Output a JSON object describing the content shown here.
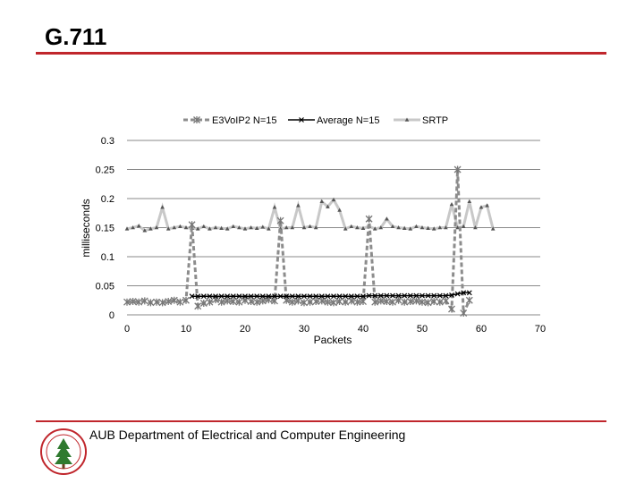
{
  "slide": {
    "title": "G.711",
    "footer": "AUB Department of Electrical and Computer Engineering"
  },
  "colors": {
    "accent_rule": "#c0262c",
    "series_e3voip": "#8c8c8c",
    "series_average": "#000000",
    "series_srtp": "#c8c8c8"
  },
  "chart_data": {
    "type": "line",
    "title": "",
    "xlabel": "Packets",
    "ylabel": "milliseconds",
    "xlim": [
      0,
      70
    ],
    "ylim": [
      0,
      0.3
    ],
    "x_ticks": [
      "0",
      "10",
      "20",
      "30",
      "40",
      "50",
      "60",
      "70"
    ],
    "y_ticks": [
      "0",
      "0.05",
      "0.1",
      "0.15",
      "0.2",
      "0.25",
      "0.3"
    ],
    "grid": true,
    "legend_position": "top",
    "series": [
      {
        "name": "E3VoIP2 N=15",
        "marker": "asterisk",
        "style": "dashed",
        "x": [
          0,
          1,
          2,
          3,
          4,
          5,
          6,
          7,
          8,
          9,
          10,
          11,
          12,
          13,
          14,
          15,
          16,
          17,
          18,
          19,
          20,
          21,
          22,
          23,
          24,
          25,
          26,
          27,
          28,
          29,
          30,
          31,
          32,
          33,
          34,
          35,
          36,
          37,
          38,
          39,
          40,
          41,
          42,
          43,
          44,
          45,
          46,
          47,
          48,
          49,
          50,
          51,
          52,
          53,
          54,
          55,
          56,
          57,
          58
        ],
        "y": [
          0.022,
          0.023,
          0.022,
          0.024,
          0.021,
          0.022,
          0.021,
          0.023,
          0.025,
          0.022,
          0.025,
          0.155,
          0.015,
          0.02,
          0.022,
          0.026,
          0.022,
          0.024,
          0.023,
          0.022,
          0.025,
          0.023,
          0.022,
          0.024,
          0.026,
          0.024,
          0.162,
          0.025,
          0.022,
          0.024,
          0.021,
          0.022,
          0.023,
          0.024,
          0.022,
          0.021,
          0.023,
          0.022,
          0.024,
          0.022,
          0.023,
          0.165,
          0.022,
          0.024,
          0.023,
          0.022,
          0.025,
          0.022,
          0.023,
          0.024,
          0.022,
          0.021,
          0.023,
          0.022,
          0.024,
          0.01,
          0.25,
          0.003,
          0.025
        ]
      },
      {
        "name": "Average N=15",
        "marker": "x",
        "style": "solid",
        "x": [
          11,
          12,
          13,
          14,
          15,
          16,
          17,
          18,
          19,
          20,
          21,
          22,
          23,
          24,
          25,
          26,
          27,
          28,
          29,
          30,
          31,
          32,
          33,
          34,
          35,
          36,
          37,
          38,
          39,
          40,
          41,
          42,
          43,
          44,
          45,
          46,
          47,
          48,
          49,
          50,
          51,
          52,
          53,
          54,
          55,
          56,
          57,
          58
        ],
        "y": [
          0.032,
          0.032,
          0.032,
          0.032,
          0.032,
          0.032,
          0.032,
          0.032,
          0.032,
          0.032,
          0.032,
          0.032,
          0.032,
          0.032,
          0.032,
          0.032,
          0.032,
          0.032,
          0.032,
          0.032,
          0.032,
          0.032,
          0.032,
          0.032,
          0.032,
          0.032,
          0.032,
          0.032,
          0.032,
          0.032,
          0.033,
          0.033,
          0.033,
          0.033,
          0.033,
          0.033,
          0.033,
          0.033,
          0.033,
          0.033,
          0.033,
          0.033,
          0.033,
          0.033,
          0.034,
          0.036,
          0.038,
          0.038
        ]
      },
      {
        "name": "SRTP",
        "marker": "triangle",
        "style": "solid",
        "x": [
          0,
          1,
          2,
          3,
          4,
          5,
          6,
          7,
          8,
          9,
          10,
          11,
          12,
          13,
          14,
          15,
          16,
          17,
          18,
          19,
          20,
          21,
          22,
          23,
          24,
          25,
          26,
          27,
          28,
          29,
          30,
          31,
          32,
          33,
          34,
          35,
          36,
          37,
          38,
          39,
          40,
          41,
          42,
          43,
          44,
          45,
          46,
          47,
          48,
          49,
          50,
          51,
          52,
          53,
          54,
          55,
          56,
          57,
          58,
          59,
          60,
          61,
          62
        ],
        "y": [
          0.148,
          0.15,
          0.153,
          0.145,
          0.148,
          0.15,
          0.185,
          0.148,
          0.15,
          0.152,
          0.15,
          0.149,
          0.148,
          0.152,
          0.148,
          0.15,
          0.149,
          0.148,
          0.152,
          0.15,
          0.148,
          0.15,
          0.149,
          0.151,
          0.148,
          0.185,
          0.148,
          0.15,
          0.15,
          0.188,
          0.15,
          0.152,
          0.15,
          0.195,
          0.186,
          0.198,
          0.18,
          0.148,
          0.152,
          0.15,
          0.149,
          0.152,
          0.148,
          0.15,
          0.165,
          0.152,
          0.15,
          0.149,
          0.148,
          0.152,
          0.15,
          0.149,
          0.148,
          0.15,
          0.15,
          0.19,
          0.15,
          0.152,
          0.195,
          0.15,
          0.185,
          0.188,
          0.148
        ]
      }
    ]
  }
}
